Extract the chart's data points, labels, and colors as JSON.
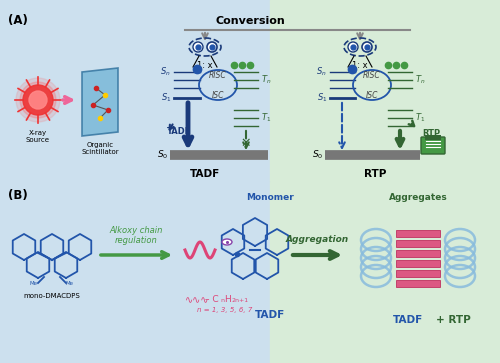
{
  "fig_width": 5.0,
  "fig_height": 3.63,
  "dpi": 100,
  "bg_top_left": "#cce0ee",
  "bg_top_right": "#d8ecd8",
  "bg_bot_left": "#cce0ee",
  "bg_bot_right": "#d8ecd8",
  "dark_blue": "#1a3a7a",
  "medium_blue": "#2255aa",
  "light_blue": "#5599cc",
  "sky_blue": "#88bbdd",
  "green_dark": "#336633",
  "green_medium": "#449944",
  "green_light": "#66bb66",
  "pink": "#dd4477",
  "gray_bar": "#777777",
  "arrow_gray": "#888888",
  "tadf_label": "TADF",
  "rtp_label": "RTP",
  "monomer_label": "Monomer",
  "aggregates_label": "Aggregates",
  "xray_label": "X-ray\nSource",
  "scintillator_label": "Organic\nScintillator",
  "conversion_text": "Conversion",
  "alkoxy_label": "Alkoxy chain\nregulation",
  "aggregation_label": "Aggregation",
  "tadf_rtp_label": "TADF + RTP",
  "mono_name": "mono-DMACDPS",
  "n_values": "n = 1, 3, 5, 6, 7",
  "panel_a": "(A)",
  "panel_b": "(B)"
}
